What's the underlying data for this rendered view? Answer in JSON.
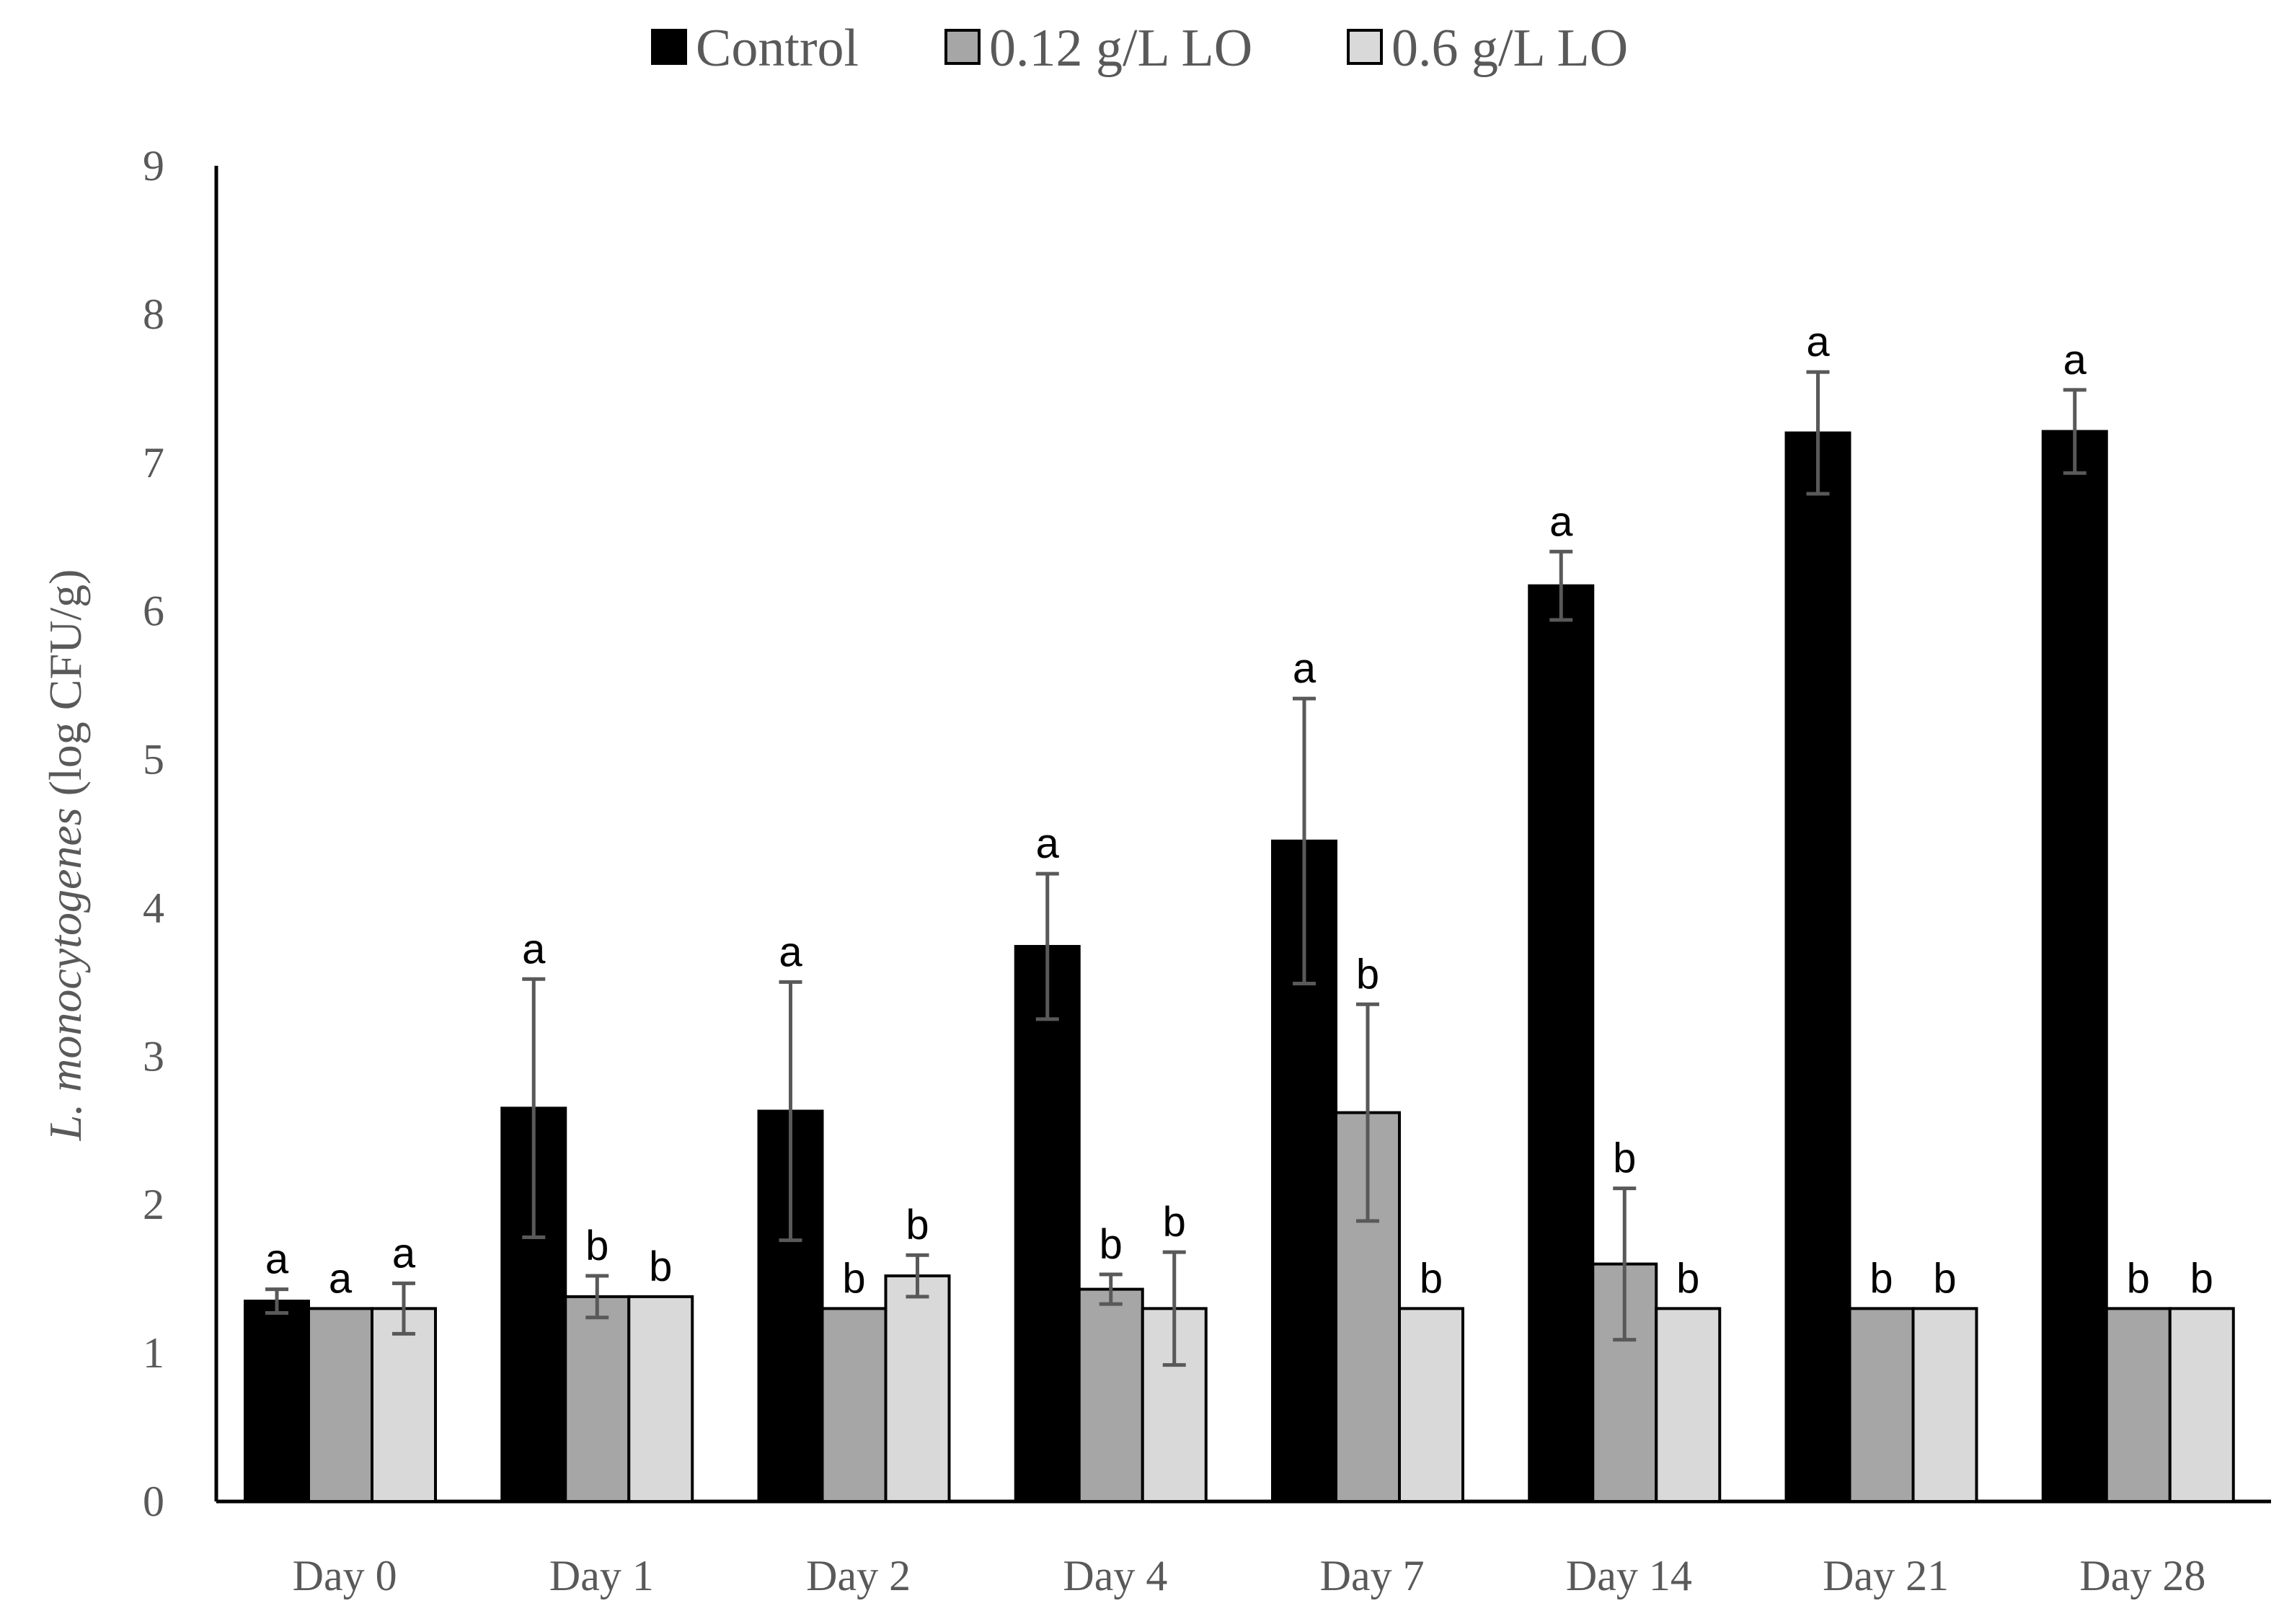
{
  "chart_data": {
    "type": "bar",
    "title": "",
    "xlabel": "",
    "ylabel_italic": "L. monocytogenes",
    "ylabel_rest": " (log CFU/g)",
    "ylim": [
      0,
      9
    ],
    "yticks": [
      0,
      1,
      2,
      3,
      4,
      5,
      6,
      7,
      8,
      9
    ],
    "legend_position": "top-center",
    "categories": [
      "Day 0",
      "Day 1",
      "Day 2",
      "Day 4",
      "Day 7",
      "Day 14",
      "Day 21",
      "Day 28"
    ],
    "series": [
      {
        "name": "Control",
        "color": "#000000",
        "values": [
          1.35,
          2.65,
          2.63,
          3.74,
          4.45,
          6.17,
          7.2,
          7.21
        ],
        "errors": [
          0.08,
          0.87,
          0.87,
          0.49,
          0.96,
          0.23,
          0.41,
          0.28
        ],
        "letters": [
          "a",
          "a",
          "a",
          "a",
          "a",
          "a",
          "a",
          "a"
        ]
      },
      {
        "name": "0.12 g/L LO",
        "color": "#a6a6a6",
        "values": [
          1.3,
          1.38,
          1.3,
          1.43,
          2.62,
          1.6,
          1.3,
          1.3
        ],
        "errors": [
          0.0,
          0.14,
          0.0,
          0.1,
          0.73,
          0.51,
          0.0,
          0.0
        ],
        "letters": [
          "a",
          "b",
          "b",
          "b",
          "b",
          "b",
          "b",
          "b"
        ]
      },
      {
        "name": "0.6 g/L LO",
        "color": "#d9d9d9",
        "values": [
          1.3,
          1.38,
          1.52,
          1.3,
          1.3,
          1.3,
          1.3,
          1.3
        ],
        "errors": [
          0.17,
          0.0,
          0.14,
          0.38,
          0.0,
          0.0,
          0.0,
          0.0
        ],
        "letters": [
          "a",
          "b",
          "b",
          "b",
          "b",
          "b",
          "b",
          "b"
        ]
      }
    ]
  }
}
